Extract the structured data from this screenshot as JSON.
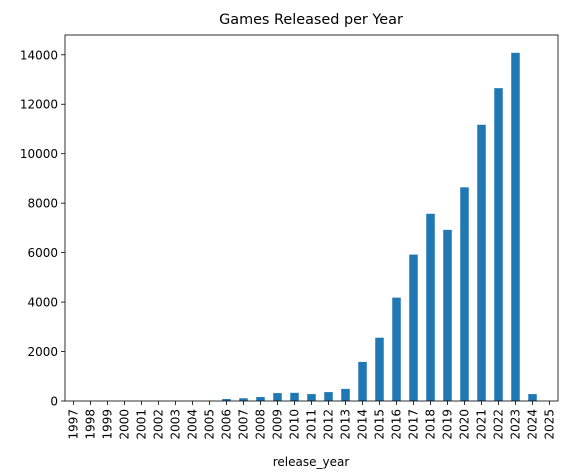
{
  "chart_data": {
    "type": "bar",
    "title": "Games Released per Year",
    "xlabel": "release_year",
    "ylabel": "",
    "ylim": [
      0,
      14800
    ],
    "yticks": [
      0,
      2000,
      4000,
      6000,
      8000,
      10000,
      12000,
      14000
    ],
    "grid": false,
    "bar_color": "#1f77b4",
    "categories": [
      "1997",
      "1998",
      "1999",
      "2000",
      "2001",
      "2002",
      "2003",
      "2004",
      "2005",
      "2006",
      "2007",
      "2008",
      "2009",
      "2010",
      "2011",
      "2012",
      "2013",
      "2014",
      "2015",
      "2016",
      "2017",
      "2018",
      "2019",
      "2020",
      "2021",
      "2022",
      "2023",
      "2024",
      "2025"
    ],
    "values": [
      1,
      1,
      2,
      2,
      3,
      3,
      4,
      6,
      5,
      80,
      110,
      160,
      320,
      330,
      280,
      360,
      490,
      1580,
      2560,
      4180,
      5920,
      7570,
      6920,
      8640,
      11170,
      12650,
      14080,
      280,
      2
    ]
  }
}
